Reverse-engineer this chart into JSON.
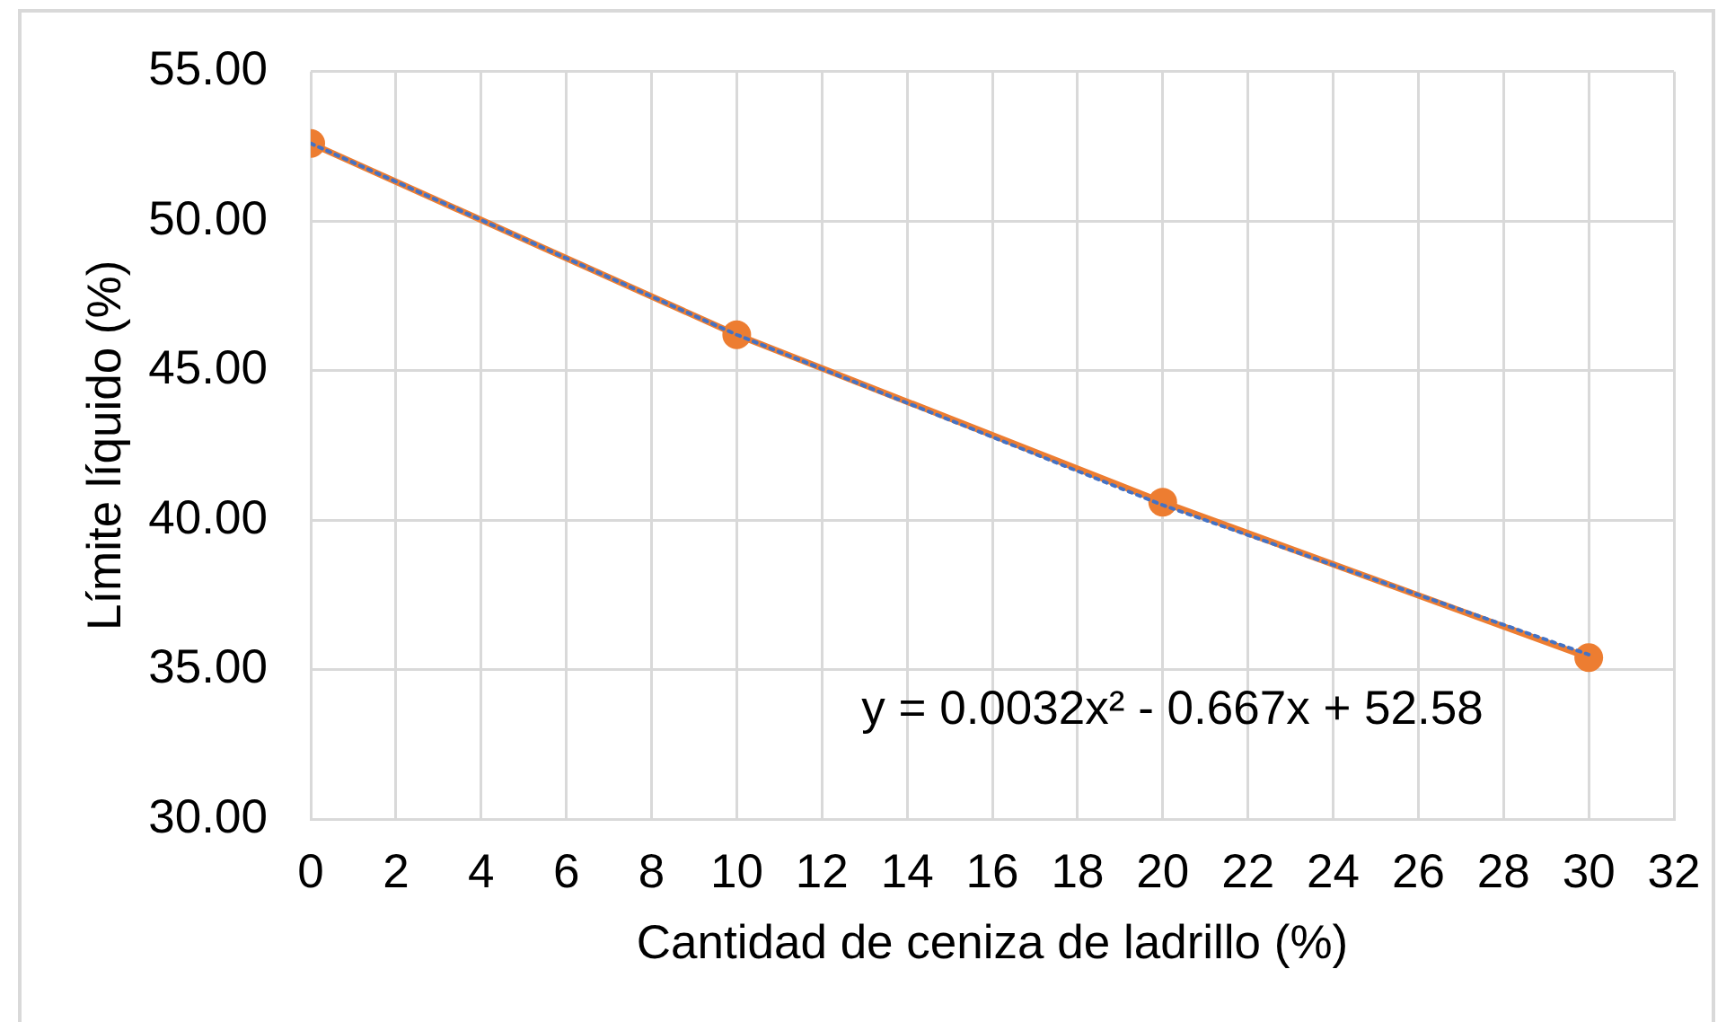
{
  "chart_data": {
    "type": "line",
    "xlabel": "Cantidad de ceniza de ladrillo (%)",
    "ylabel": "Límite líquido (%)",
    "annotations": [
      "y = 0.0032x² - 0.667x + 52.58"
    ],
    "x": [
      0,
      10,
      20,
      30
    ],
    "series": [
      {
        "color": "#ed7d31",
        "values": [
          52.6,
          46.2,
          40.6,
          35.4
        ],
        "marker": "circle",
        "line_style": "solid"
      },
      {
        "color": "#4472c4",
        "x": [
          0,
          10,
          20,
          30
        ],
        "values": [
          52.6,
          46.2,
          40.5,
          35.5
        ],
        "marker": "none",
        "line_style": "dotted"
      }
    ],
    "xlim": [
      0,
      32
    ],
    "xticks": [
      0,
      2,
      4,
      6,
      8,
      10,
      12,
      14,
      16,
      18,
      20,
      22,
      24,
      26,
      28,
      30,
      32
    ],
    "ylim": [
      30,
      55
    ],
    "yticks": [
      {
        "value": 30,
        "label": "30.00"
      },
      {
        "value": 35,
        "label": "35.00"
      },
      {
        "value": 40,
        "label": "40.00"
      },
      {
        "value": 45,
        "label": "45.00"
      },
      {
        "value": 50,
        "label": "50.00"
      },
      {
        "value": 55,
        "label": "55.00"
      }
    ],
    "grid": true
  }
}
